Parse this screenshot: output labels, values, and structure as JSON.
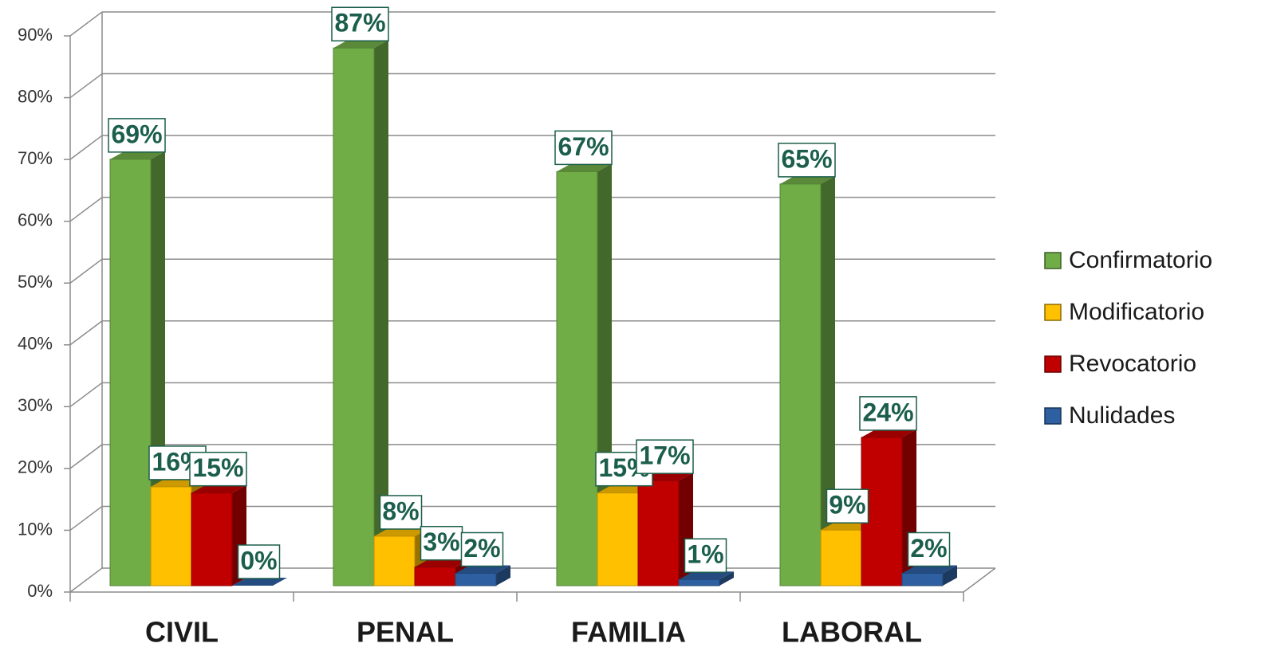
{
  "chart_data": {
    "type": "bar3d",
    "categories": [
      "CIVIL",
      "PENAL",
      "FAMILIA",
      "LABORAL"
    ],
    "series": [
      {
        "name": "Confirmatorio",
        "color": "#70ad47",
        "values": [
          69,
          87,
          67,
          65
        ],
        "value_labels": [
          "69%",
          "87%",
          "67%",
          "65%"
        ]
      },
      {
        "name": "Modificatorio",
        "color": "#ffc000",
        "values": [
          16,
          8,
          15,
          9
        ],
        "value_labels": [
          "16%",
          "8%",
          "15%",
          "9%"
        ]
      },
      {
        "name": "Revocatorio",
        "color": "#c00000",
        "values": [
          15,
          3,
          17,
          24
        ],
        "value_labels": [
          "15%",
          "3%",
          "17%",
          "24%"
        ]
      },
      {
        "name": "Nulidades",
        "color": "#2e5fa0",
        "values": [
          0,
          2,
          1,
          2
        ],
        "value_labels": [
          "0%",
          "2%",
          "1%",
          "2%"
        ]
      }
    ],
    "ylim": [
      0,
      90
    ],
    "yticks": [
      {
        "value": 0,
        "label": "0%"
      },
      {
        "value": 10,
        "label": "10%"
      },
      {
        "value": 20,
        "label": "20%"
      },
      {
        "value": 30,
        "label": "30%"
      },
      {
        "value": 40,
        "label": "40%"
      },
      {
        "value": 50,
        "label": "50%"
      },
      {
        "value": 60,
        "label": "60%"
      },
      {
        "value": 70,
        "label": "70%"
      },
      {
        "value": 80,
        "label": "80%"
      },
      {
        "value": 90,
        "label": "90%"
      }
    ],
    "grid": true,
    "legend": "right"
  }
}
